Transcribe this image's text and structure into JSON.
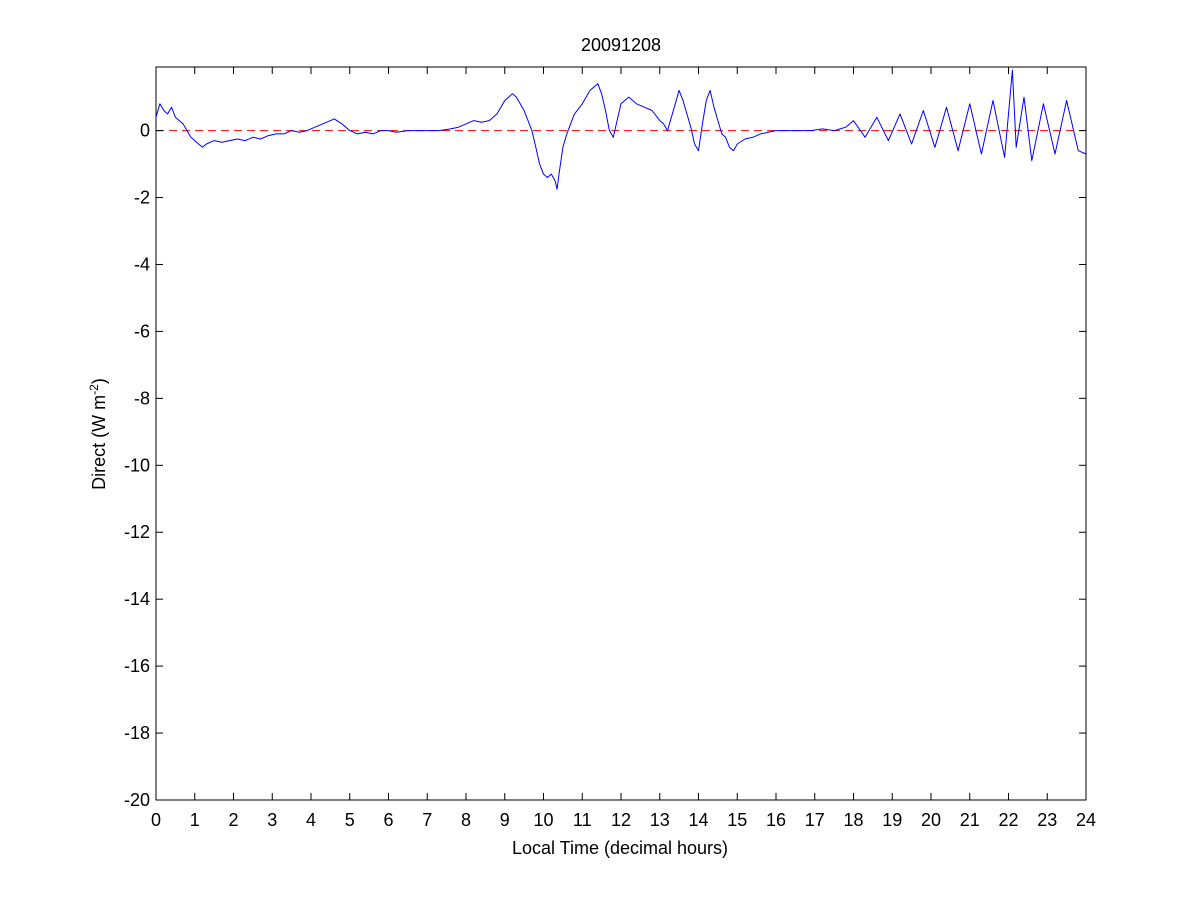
{
  "chart_data": {
    "type": "line",
    "title": "20091208",
    "xlabel": "Local Time (decimal hours)",
    "ylabel_main": "Direct (W m",
    "ylabel_sup": "-2",
    "ylabel_close": ")",
    "xlim": [
      0,
      24
    ],
    "ylim": [
      -20,
      1.9
    ],
    "xticks": [
      0,
      1,
      2,
      3,
      4,
      5,
      6,
      7,
      8,
      9,
      10,
      11,
      12,
      13,
      14,
      15,
      16,
      17,
      18,
      19,
      20,
      21,
      22,
      23,
      24
    ],
    "yticks": [
      0,
      -2,
      -4,
      -6,
      -8,
      -10,
      -12,
      -14,
      -16,
      -18,
      -20
    ],
    "grid": false,
    "reference_line": {
      "y": 0,
      "color": "#ff0000",
      "style": "dashed"
    },
    "series": [
      {
        "color": "#0000ff",
        "x": [
          0.0,
          0.1,
          0.2,
          0.3,
          0.4,
          0.5,
          0.6,
          0.7,
          0.8,
          0.9,
          1.0,
          1.1,
          1.2,
          1.3,
          1.5,
          1.7,
          1.9,
          2.1,
          2.3,
          2.5,
          2.7,
          2.9,
          3.1,
          3.3,
          3.5,
          3.7,
          3.9,
          4.1,
          4.3,
          4.5,
          4.6,
          4.8,
          5.0,
          5.2,
          5.4,
          5.6,
          5.8,
          6.0,
          6.2,
          6.5,
          6.8,
          7.0,
          7.3,
          7.6,
          7.8,
          8.0,
          8.2,
          8.4,
          8.6,
          8.8,
          9.0,
          9.2,
          9.3,
          9.5,
          9.7,
          9.8,
          9.9,
          10.0,
          10.1,
          10.2,
          10.3,
          10.35,
          10.4,
          10.5,
          10.6,
          10.7,
          10.8,
          11.0,
          11.2,
          11.4,
          11.5,
          11.6,
          11.7,
          11.8,
          11.9,
          12.0,
          12.2,
          12.4,
          12.6,
          12.8,
          13.0,
          13.1,
          13.2,
          13.4,
          13.5,
          13.6,
          13.7,
          13.8,
          13.9,
          14.0,
          14.1,
          14.2,
          14.3,
          14.4,
          14.5,
          14.6,
          14.7,
          14.8,
          14.9,
          15.0,
          15.2,
          15.4,
          15.6,
          15.8,
          16.0,
          16.3,
          16.6,
          16.9,
          17.2,
          17.5,
          17.8,
          18.0,
          18.3,
          18.6,
          18.9,
          19.2,
          19.5,
          19.8,
          20.1,
          20.4,
          20.7,
          21.0,
          21.3,
          21.6,
          21.9,
          22.1,
          22.2,
          22.4,
          22.6,
          22.9,
          23.2,
          23.5,
          23.8,
          24.0
        ],
        "y": [
          0.4,
          0.8,
          0.6,
          0.5,
          0.7,
          0.4,
          0.3,
          0.2,
          0.0,
          -0.2,
          -0.3,
          -0.4,
          -0.5,
          -0.4,
          -0.3,
          -0.35,
          -0.3,
          -0.25,
          -0.3,
          -0.2,
          -0.25,
          -0.15,
          -0.1,
          -0.1,
          0.0,
          -0.05,
          0.0,
          0.1,
          0.2,
          0.3,
          0.35,
          0.2,
          0.0,
          -0.1,
          -0.05,
          -0.1,
          0.0,
          0.0,
          -0.05,
          0.0,
          0.0,
          0.0,
          0.0,
          0.05,
          0.1,
          0.2,
          0.3,
          0.25,
          0.3,
          0.5,
          0.9,
          1.1,
          1.0,
          0.6,
          0.0,
          -0.5,
          -1.0,
          -1.3,
          -1.4,
          -1.3,
          -1.5,
          -1.75,
          -1.3,
          -0.5,
          -0.1,
          0.2,
          0.5,
          0.8,
          1.2,
          1.4,
          1.1,
          0.6,
          0.0,
          -0.2,
          0.3,
          0.8,
          1.0,
          0.8,
          0.7,
          0.6,
          0.3,
          0.2,
          0.0,
          0.8,
          1.2,
          0.9,
          0.5,
          0.1,
          -0.4,
          -0.6,
          0.2,
          0.9,
          1.2,
          0.7,
          0.3,
          -0.1,
          -0.2,
          -0.5,
          -0.6,
          -0.4,
          -0.25,
          -0.2,
          -0.1,
          -0.05,
          0.0,
          0.0,
          0.0,
          0.0,
          0.05,
          0.0,
          0.1,
          0.3,
          -0.2,
          0.4,
          -0.3,
          0.5,
          -0.4,
          0.6,
          -0.5,
          0.7,
          -0.6,
          0.8,
          -0.7,
          0.9,
          -0.8,
          1.8,
          -0.5,
          1.0,
          -0.9,
          0.8,
          -0.7,
          0.9,
          -0.6,
          -0.7
        ]
      }
    ]
  }
}
